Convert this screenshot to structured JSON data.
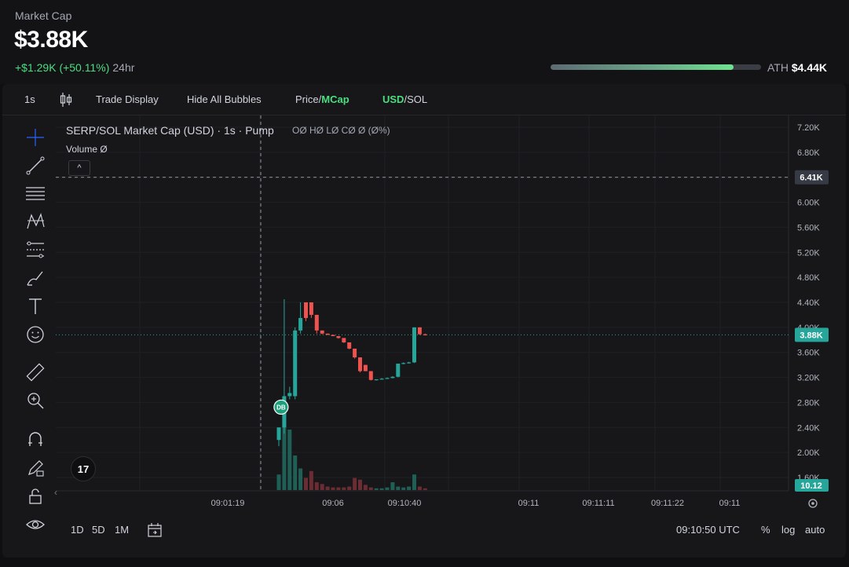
{
  "header": {
    "label": "Market Cap",
    "value": "$3.88K",
    "change": "+$1.29K (+50.11%)",
    "period": "24hr",
    "ath_label": "ATH",
    "ath_value": "$4.44K",
    "ath_progress": 0.87
  },
  "toolbar": {
    "interval": "1s",
    "trade_display": "Trade Display",
    "hide_bubbles": "Hide All Bubbles",
    "price_label": "Price",
    "sep": "/",
    "mcap_label": "MCap",
    "usd_label": "USD",
    "sol_label": "SOL"
  },
  "legend": {
    "title": "SERP/SOL Market Cap (USD) · 1s · Pump",
    "ohlc": "OØ HØ LØ CØ Ø (Ø%)",
    "volume": "Volume  Ø",
    "collapse_icon": "^",
    "tv_logo": "17"
  },
  "bottom": {
    "ranges": [
      "1D",
      "5D",
      "1M"
    ],
    "time": "09:10:50 UTC",
    "percent": "%",
    "log": "log",
    "auto": "auto"
  },
  "chart_data": {
    "type": "candlestick",
    "title": "SERP/SOL Market Cap (USD) · 1s · Pump",
    "y_tick_labels": [
      "7.20K",
      "6.80K",
      "6.40K",
      "6.00K",
      "5.60K",
      "5.20K",
      "4.80K",
      "4.40K",
      "4.00K",
      "3.60K",
      "3.20K",
      "2.80K",
      "2.40K",
      "2.00K",
      "1.60K"
    ],
    "y_ticks": [
      7200,
      6800,
      6400,
      6000,
      5600,
      5200,
      4800,
      4400,
      4000,
      3600,
      3200,
      2800,
      2400,
      2000,
      1600
    ],
    "ylim": [
      1450,
      7300
    ],
    "x_tick_labels": [
      "09:01:19",
      "09:06",
      "09:10:40",
      "09:11",
      "09:11:11",
      "09:11:22",
      "09:11"
    ],
    "crosshair_value": 6400,
    "crosshair_label": "6.41K",
    "last_price": 3880,
    "last_price_label": "3.88K",
    "volume_label": "10.12",
    "colors": {
      "up": "#26a69a",
      "down": "#ef5350",
      "price_line": "#26a69a",
      "bubble": "#1f9e7c"
    },
    "bubble_label": "DB",
    "candles": [
      {
        "o": 2200,
        "h": 2400,
        "l": 2100,
        "c": 2400
      },
      {
        "o": 2400,
        "h": 4450,
        "l": 2300,
        "c": 2900
      },
      {
        "o": 2900,
        "h": 3050,
        "l": 2850,
        "c": 2950
      },
      {
        "o": 2900,
        "h": 4000,
        "l": 2850,
        "c": 3950
      },
      {
        "o": 3950,
        "h": 4400,
        "l": 3900,
        "c": 4150
      },
      {
        "o": 4400,
        "h": 4400,
        "l": 4100,
        "c": 4150
      },
      {
        "o": 4400,
        "h": 4400,
        "l": 4150,
        "c": 4200
      },
      {
        "o": 4200,
        "h": 4200,
        "l": 3900,
        "c": 3950
      },
      {
        "o": 3950,
        "h": 3950,
        "l": 3890,
        "c": 3900
      },
      {
        "o": 3900,
        "h": 3900,
        "l": 3880,
        "c": 3880
      },
      {
        "o": 3880,
        "h": 3880,
        "l": 3860,
        "c": 3860
      },
      {
        "o": 3860,
        "h": 3860,
        "l": 3820,
        "c": 3830
      },
      {
        "o": 3830,
        "h": 3830,
        "l": 3750,
        "c": 3760
      },
      {
        "o": 3760,
        "h": 3760,
        "l": 3650,
        "c": 3660
      },
      {
        "o": 3660,
        "h": 3660,
        "l": 3500,
        "c": 3520
      },
      {
        "o": 3520,
        "h": 3520,
        "l": 3280,
        "c": 3300
      },
      {
        "o": 3400,
        "h": 3400,
        "l": 3300,
        "c": 3300
      },
      {
        "o": 3300,
        "h": 3300,
        "l": 3150,
        "c": 3160
      },
      {
        "o": 3160,
        "h": 3170,
        "l": 3150,
        "c": 3170
      },
      {
        "o": 3170,
        "h": 3190,
        "l": 3165,
        "c": 3180
      },
      {
        "o": 3180,
        "h": 3200,
        "l": 3175,
        "c": 3190
      },
      {
        "o": 3190,
        "h": 3220,
        "l": 3185,
        "c": 3210
      },
      {
        "o": 3210,
        "h": 3420,
        "l": 3200,
        "c": 3420
      },
      {
        "o": 3420,
        "h": 3440,
        "l": 3410,
        "c": 3430
      },
      {
        "o": 3430,
        "h": 3450,
        "l": 3420,
        "c": 3440
      },
      {
        "o": 3440,
        "h": 4000,
        "l": 3430,
        "c": 4000
      },
      {
        "o": 4000,
        "h": 4000,
        "l": 3880,
        "c": 3890
      },
      {
        "o": 3890,
        "h": 3900,
        "l": 3870,
        "c": 3880
      }
    ],
    "volumes": [
      18,
      100,
      70,
      40,
      25,
      14,
      22,
      9,
      7,
      4,
      3,
      3,
      3,
      4,
      14,
      12,
      6,
      3,
      2,
      2,
      3,
      9,
      4,
      3,
      4,
      18,
      4,
      2
    ]
  }
}
